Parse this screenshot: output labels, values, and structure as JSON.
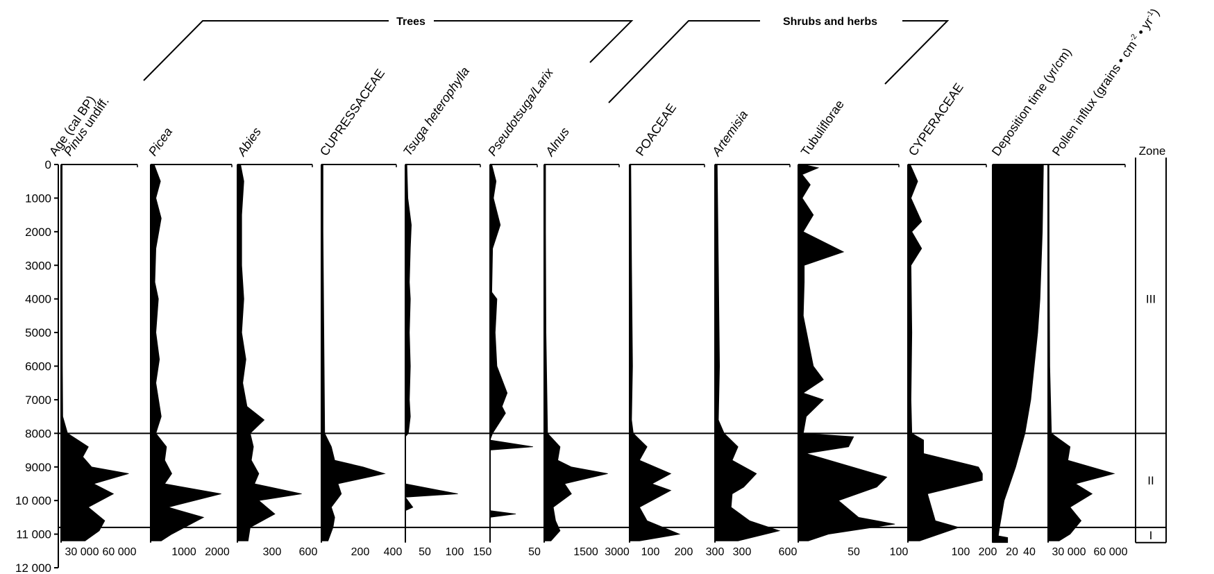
{
  "chart_data": {
    "type": "area",
    "y_axis": {
      "label": "Age (cal BP)",
      "range": [
        0,
        12000
      ],
      "ticks": [
        "0",
        "1000",
        "2000",
        "3000",
        "4000",
        "5000",
        "6000",
        "7000",
        "8000",
        "9000",
        "10 000",
        "11 000",
        "12 000"
      ]
    },
    "groups": [
      {
        "label": "Trees"
      },
      {
        "label": "Shrubs and herbs"
      }
    ],
    "zone_header": "Zone",
    "zones": [
      {
        "label": "III",
        "from": 0,
        "to": 8000
      },
      {
        "label": "II",
        "from": 8000,
        "to": 10800
      },
      {
        "label": "I",
        "from": 10800,
        "to": 11250
      }
    ],
    "columns": [
      {
        "name": "Pinus undiff.",
        "label_italic": "Pinus",
        "label_plain": " undiff.",
        "ticks": [
          "30 000",
          "60 000"
        ],
        "max": 70000,
        "profile": [
          [
            0,
            1000
          ],
          [
            3000,
            1000
          ],
          [
            6000,
            1200
          ],
          [
            7500,
            1500
          ],
          [
            8000,
            6000
          ],
          [
            8400,
            25000
          ],
          [
            8700,
            20000
          ],
          [
            9000,
            28000
          ],
          [
            9200,
            62000
          ],
          [
            9500,
            30000
          ],
          [
            9800,
            48000
          ],
          [
            10200,
            25000
          ],
          [
            10600,
            40000
          ],
          [
            10900,
            35000
          ],
          [
            11200,
            22000
          ]
        ]
      },
      {
        "name": "Picea",
        "label_italic": "Picea",
        "label_plain": "",
        "ticks": [
          "1000",
          "2000"
        ],
        "max": 2300,
        "profile": [
          [
            0,
            100
          ],
          [
            500,
            280
          ],
          [
            1000,
            150
          ],
          [
            1600,
            300
          ],
          [
            2500,
            150
          ],
          [
            3500,
            120
          ],
          [
            4000,
            220
          ],
          [
            5000,
            150
          ],
          [
            5800,
            250
          ],
          [
            6500,
            150
          ],
          [
            7500,
            300
          ],
          [
            8000,
            150
          ],
          [
            8400,
            450
          ],
          [
            8800,
            400
          ],
          [
            9200,
            600
          ],
          [
            9500,
            400
          ],
          [
            9800,
            2000
          ],
          [
            10200,
            500
          ],
          [
            10500,
            1500
          ],
          [
            11000,
            600
          ],
          [
            11200,
            300
          ]
        ]
      },
      {
        "name": "Abies",
        "label_italic": "Abies",
        "label_plain": "",
        "ticks": [
          "300",
          "600"
        ],
        "max": 700,
        "profile": [
          [
            0,
            30
          ],
          [
            500,
            60
          ],
          [
            1500,
            40
          ],
          [
            3000,
            40
          ],
          [
            4000,
            60
          ],
          [
            5000,
            40
          ],
          [
            5800,
            80
          ],
          [
            6500,
            50
          ],
          [
            7200,
            90
          ],
          [
            7600,
            250
          ],
          [
            8000,
            120
          ],
          [
            8400,
            150
          ],
          [
            8800,
            130
          ],
          [
            9200,
            200
          ],
          [
            9500,
            160
          ],
          [
            9800,
            600
          ],
          [
            10000,
            200
          ],
          [
            10400,
            350
          ],
          [
            10800,
            120
          ],
          [
            11200,
            100
          ]
        ]
      },
      {
        "name": "CUPRESSACEAE",
        "label_italic": "",
        "label_plain": "CUPRESSACEAE",
        "ticks": [
          "200",
          "400"
        ],
        "max": 450,
        "profile": [
          [
            0,
            10
          ],
          [
            2000,
            10
          ],
          [
            5000,
            15
          ],
          [
            8000,
            20
          ],
          [
            8400,
            60
          ],
          [
            8800,
            80
          ],
          [
            9000,
            250
          ],
          [
            9200,
            380
          ],
          [
            9500,
            100
          ],
          [
            9800,
            120
          ],
          [
            10200,
            60
          ],
          [
            10500,
            80
          ],
          [
            10800,
            70
          ],
          [
            11200,
            40
          ]
        ]
      },
      {
        "name": "Tsuga heterophylla",
        "label_italic": "Tsuga heterophylla",
        "label_plain": "",
        "ticks": [
          "50",
          "100",
          "150"
        ],
        "max": 150,
        "profile": [
          [
            0,
            3
          ],
          [
            1000,
            5
          ],
          [
            1800,
            12
          ],
          [
            2500,
            10
          ],
          [
            3500,
            8
          ],
          [
            4000,
            10
          ],
          [
            5000,
            8
          ],
          [
            6000,
            10
          ],
          [
            7000,
            8
          ],
          [
            7500,
            10
          ],
          [
            8000,
            6
          ],
          [
            8100,
            0
          ],
          [
            9500,
            0
          ],
          [
            9800,
            105
          ],
          [
            9900,
            0
          ],
          [
            10200,
            15
          ],
          [
            10300,
            0
          ],
          [
            11200,
            0
          ]
        ]
      },
      {
        "name": "Pseudotsuga/Larix",
        "label_italic": "Pseudotsuga/Larix",
        "label_plain": "",
        "ticks": [
          "50"
        ],
        "max": 55,
        "profile": [
          [
            0,
            2
          ],
          [
            500,
            7
          ],
          [
            1000,
            4
          ],
          [
            1800,
            12
          ],
          [
            2500,
            3
          ],
          [
            3800,
            2
          ],
          [
            4000,
            8
          ],
          [
            4500,
            7
          ],
          [
            5000,
            6
          ],
          [
            6000,
            8
          ],
          [
            6800,
            20
          ],
          [
            7200,
            14
          ],
          [
            7400,
            18
          ],
          [
            7800,
            8
          ],
          [
            8000,
            3
          ],
          [
            8200,
            0
          ],
          [
            8400,
            50
          ],
          [
            8500,
            0
          ],
          [
            10300,
            0
          ],
          [
            10400,
            30
          ],
          [
            10500,
            0
          ],
          [
            11200,
            0
          ]
        ]
      },
      {
        "name": "Alnus",
        "label_italic": "Alnus",
        "label_plain": "",
        "ticks": [
          "1500",
          "3000"
        ],
        "max": 3300,
        "profile": [
          [
            0,
            60
          ],
          [
            2000,
            60
          ],
          [
            5000,
            80
          ],
          [
            8000,
            150
          ],
          [
            8400,
            700
          ],
          [
            8800,
            600
          ],
          [
            9000,
            1200
          ],
          [
            9200,
            2800
          ],
          [
            9500,
            900
          ],
          [
            9800,
            1200
          ],
          [
            10200,
            400
          ],
          [
            10600,
            500
          ],
          [
            10900,
            700
          ],
          [
            11200,
            300
          ]
        ]
      },
      {
        "name": "POACEAE",
        "label_italic": "",
        "label_plain": "POACEAE",
        "ticks": [
          "100",
          "200",
          "300"
        ],
        "max": 300,
        "profile": [
          [
            0,
            5
          ],
          [
            3000,
            8
          ],
          [
            6000,
            12
          ],
          [
            7600,
            8
          ],
          [
            8000,
            15
          ],
          [
            8400,
            70
          ],
          [
            8800,
            40
          ],
          [
            9200,
            165
          ],
          [
            9500,
            90
          ],
          [
            9700,
            165
          ],
          [
            10200,
            40
          ],
          [
            10600,
            70
          ],
          [
            11000,
            200
          ],
          [
            11200,
            40
          ]
        ]
      },
      {
        "name": "Artemisia",
        "label_italic": "Artemisia",
        "label_plain": "",
        "ticks": [
          "300",
          "600"
        ],
        "max": 650,
        "profile": [
          [
            0,
            20
          ],
          [
            3000,
            30
          ],
          [
            6000,
            40
          ],
          [
            7600,
            30
          ],
          [
            8000,
            80
          ],
          [
            8400,
            200
          ],
          [
            8800,
            150
          ],
          [
            9200,
            360
          ],
          [
            9600,
            250
          ],
          [
            9800,
            150
          ],
          [
            10200,
            140
          ],
          [
            10600,
            300
          ],
          [
            10900,
            560
          ],
          [
            11200,
            200
          ]
        ]
      },
      {
        "name": "Tubuliflorae",
        "label_italic": "",
        "label_plain": "Tubuliflorae",
        "ticks": [
          "50",
          "100"
        ],
        "max": 100,
        "profile": [
          [
            0,
            5
          ],
          [
            100,
            20
          ],
          [
            300,
            4
          ],
          [
            600,
            12
          ],
          [
            1000,
            4
          ],
          [
            1500,
            15
          ],
          [
            2000,
            5
          ],
          [
            2600,
            45
          ],
          [
            3000,
            6
          ],
          [
            3500,
            6
          ],
          [
            4500,
            5
          ],
          [
            6000,
            15
          ],
          [
            6400,
            25
          ],
          [
            6800,
            5
          ],
          [
            7000,
            25
          ],
          [
            7500,
            8
          ],
          [
            8000,
            5
          ],
          [
            8100,
            55
          ],
          [
            8400,
            50
          ],
          [
            8600,
            8
          ],
          [
            9300,
            88
          ],
          [
            9600,
            78
          ],
          [
            10000,
            40
          ],
          [
            10500,
            60
          ],
          [
            10700,
            96
          ],
          [
            11000,
            30
          ],
          [
            11200,
            10
          ]
        ]
      },
      {
        "name": "CYPERACEAE",
        "label_italic": "",
        "label_plain": "CYPERACEAE",
        "ticks": [
          "100",
          "200"
        ],
        "max": 200,
        "profile": [
          [
            0,
            6
          ],
          [
            500,
            25
          ],
          [
            1000,
            8
          ],
          [
            1700,
            35
          ],
          [
            2000,
            10
          ],
          [
            2500,
            35
          ],
          [
            3000,
            8
          ],
          [
            5000,
            10
          ],
          [
            7000,
            8
          ],
          [
            8000,
            10
          ],
          [
            8200,
            40
          ],
          [
            8600,
            40
          ],
          [
            9000,
            180
          ],
          [
            9200,
            190
          ],
          [
            9400,
            190
          ],
          [
            9800,
            50
          ],
          [
            10200,
            60
          ],
          [
            10600,
            70
          ],
          [
            10800,
            130
          ],
          [
            11200,
            30
          ]
        ]
      },
      {
        "name": "Deposition time (yr/cm)",
        "label_italic": "",
        "label_plain": "Deposition time (yr/cm)",
        "ticks": [
          "20",
          "40"
        ],
        "max": 48,
        "profile": [
          [
            0,
            44
          ],
          [
            2000,
            43
          ],
          [
            4000,
            41
          ],
          [
            5000,
            39
          ],
          [
            6000,
            36
          ],
          [
            7000,
            33
          ],
          [
            8000,
            28
          ],
          [
            9000,
            20
          ],
          [
            10000,
            10
          ],
          [
            10800,
            6
          ],
          [
            11050,
            5
          ],
          [
            11100,
            13
          ],
          [
            11250,
            13
          ]
        ]
      },
      {
        "name": "Pollen influx",
        "label_italic": "",
        "label_plain": "Pollen influx (grains",
        "label_sup": "-2",
        "label_sup2": "-1",
        "ticks": [
          "30 000",
          "60 000"
        ],
        "max": 70000,
        "profile": [
          [
            0,
            800
          ],
          [
            3000,
            1000
          ],
          [
            6000,
            1500
          ],
          [
            8000,
            3000
          ],
          [
            8400,
            20000
          ],
          [
            8800,
            18000
          ],
          [
            9200,
            60000
          ],
          [
            9500,
            25000
          ],
          [
            9800,
            40000
          ],
          [
            10200,
            20000
          ],
          [
            10600,
            30000
          ],
          [
            11000,
            20000
          ],
          [
            11200,
            10000
          ]
        ]
      }
    ]
  }
}
